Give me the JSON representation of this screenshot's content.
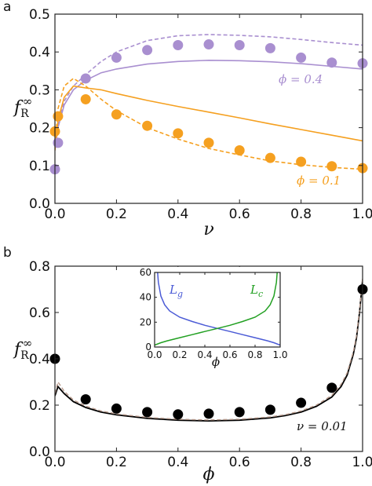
{
  "panel_labels": {
    "a": "a",
    "b": "b"
  },
  "chart_data": [
    {
      "type": "line",
      "panel": "a",
      "xlabel": "ν",
      "ylabel": "f",
      "ylabel_sub": "R",
      "ylabel_sup": "∞",
      "xlim": [
        0,
        1
      ],
      "ylim": [
        0,
        0.5
      ],
      "xticks": [
        "0.0",
        "0.2",
        "0.4",
        "0.6",
        "0.8",
        "1.0"
      ],
      "yticks": [
        "0.0",
        "0.1",
        "0.2",
        "0.3",
        "0.4",
        "0.5"
      ],
      "colors": {
        "purple": "#a98fd0",
        "orange": "#f5a020"
      },
      "annotations": [
        {
          "text": "ϕ = 0.4",
          "color": "#a98fd0"
        },
        {
          "text": "ϕ = 0.1",
          "color": "#f5a020"
        }
      ],
      "series": [
        {
          "color": "purple",
          "style": "solid",
          "x": [
            0.0,
            0.01,
            0.03,
            0.06,
            0.1,
            0.15,
            0.2,
            0.3,
            0.4,
            0.5,
            0.6,
            0.7,
            0.8,
            0.9,
            1.0
          ],
          "y": [
            0.14,
            0.2,
            0.26,
            0.3,
            0.325,
            0.345,
            0.355,
            0.368,
            0.375,
            0.378,
            0.377,
            0.374,
            0.369,
            0.362,
            0.355
          ]
        },
        {
          "color": "purple",
          "style": "dashed",
          "x": [
            0.0,
            0.01,
            0.03,
            0.06,
            0.1,
            0.15,
            0.2,
            0.3,
            0.4,
            0.5,
            0.6,
            0.7,
            0.8,
            0.9,
            1.0
          ],
          "y": [
            0.14,
            0.21,
            0.27,
            0.31,
            0.34,
            0.375,
            0.4,
            0.43,
            0.443,
            0.446,
            0.444,
            0.44,
            0.433,
            0.425,
            0.418
          ]
        },
        {
          "color": "orange",
          "style": "solid",
          "x": [
            0.0,
            0.01,
            0.03,
            0.06,
            0.1,
            0.15,
            0.2,
            0.3,
            0.4,
            0.5,
            0.6,
            0.7,
            0.8,
            0.9,
            1.0
          ],
          "y": [
            0.14,
            0.22,
            0.28,
            0.31,
            0.305,
            0.3,
            0.29,
            0.272,
            0.256,
            0.241,
            0.226,
            0.21,
            0.195,
            0.18,
            0.165
          ]
        },
        {
          "color": "orange",
          "style": "dashed",
          "x": [
            0.0,
            0.01,
            0.03,
            0.06,
            0.1,
            0.15,
            0.2,
            0.3,
            0.4,
            0.5,
            0.6,
            0.7,
            0.8,
            0.9,
            1.0
          ],
          "y": [
            0.15,
            0.25,
            0.31,
            0.33,
            0.31,
            0.275,
            0.245,
            0.2,
            0.17,
            0.145,
            0.128,
            0.112,
            0.102,
            0.095,
            0.09
          ]
        },
        {
          "color": "purple",
          "style": "points",
          "x": [
            0.0,
            0.01,
            0.1,
            0.2,
            0.3,
            0.4,
            0.5,
            0.6,
            0.7,
            0.8,
            0.9,
            1.0
          ],
          "y": [
            0.09,
            0.16,
            0.33,
            0.385,
            0.405,
            0.418,
            0.42,
            0.418,
            0.41,
            0.385,
            0.372,
            0.37
          ]
        },
        {
          "color": "orange",
          "style": "points",
          "x": [
            0.0,
            0.01,
            0.1,
            0.2,
            0.3,
            0.4,
            0.5,
            0.6,
            0.7,
            0.8,
            0.9,
            1.0
          ],
          "y": [
            0.19,
            0.23,
            0.275,
            0.235,
            0.205,
            0.185,
            0.16,
            0.14,
            0.12,
            0.11,
            0.098,
            0.093
          ]
        }
      ]
    },
    {
      "type": "line",
      "panel": "b",
      "xlabel": "ϕ",
      "ylabel": "f",
      "ylabel_sub": "R",
      "ylabel_sup": "∞",
      "xlim": [
        0,
        1
      ],
      "ylim": [
        0,
        0.8
      ],
      "xticks": [
        "0.0",
        "0.2",
        "0.4",
        "0.6",
        "0.8",
        "1.0"
      ],
      "yticks": [
        "0.0",
        "0.2",
        "0.4",
        "0.6",
        "0.8"
      ],
      "annotations": [
        {
          "text": "ν = 0.01",
          "color": "#111111"
        }
      ],
      "series": [
        {
          "color": "black",
          "style": "solid",
          "x": [
            0.0,
            0.01,
            0.03,
            0.06,
            0.1,
            0.15,
            0.2,
            0.3,
            0.4,
            0.5,
            0.6,
            0.7,
            0.75,
            0.8,
            0.85,
            0.9,
            0.93,
            0.95,
            0.97,
            0.98,
            0.99,
            1.0
          ],
          "y": [
            0.24,
            0.28,
            0.25,
            0.215,
            0.19,
            0.17,
            0.158,
            0.143,
            0.135,
            0.132,
            0.135,
            0.145,
            0.155,
            0.17,
            0.195,
            0.235,
            0.28,
            0.33,
            0.42,
            0.49,
            0.6,
            0.74
          ]
        },
        {
          "color": "dashed-gray",
          "style": "dashed",
          "x": [
            0.0,
            0.01,
            0.03,
            0.06,
            0.1,
            0.15,
            0.2,
            0.3,
            0.4,
            0.5,
            0.6,
            0.7,
            0.75,
            0.8,
            0.85,
            0.9,
            0.93,
            0.95,
            0.97,
            0.98,
            0.99,
            1.0
          ],
          "y": [
            0.25,
            0.3,
            0.26,
            0.222,
            0.196,
            0.175,
            0.162,
            0.147,
            0.139,
            0.136,
            0.139,
            0.149,
            0.159,
            0.175,
            0.2,
            0.242,
            0.29,
            0.34,
            0.43,
            0.5,
            0.61,
            0.75
          ]
        },
        {
          "color": "black",
          "style": "points",
          "x": [
            0.0,
            0.1,
            0.2,
            0.3,
            0.4,
            0.5,
            0.6,
            0.7,
            0.8,
            0.9,
            1.0
          ],
          "y": [
            0.4,
            0.225,
            0.185,
            0.17,
            0.16,
            0.163,
            0.17,
            0.18,
            0.21,
            0.275,
            0.7
          ]
        }
      ],
      "inset": {
        "xlabel": "ϕ",
        "xlim": [
          0,
          1
        ],
        "ylim": [
          0,
          60
        ],
        "xticks": [
          "0.0",
          "0.2",
          "0.4",
          "0.6",
          "0.8",
          "1.0"
        ],
        "yticks": [
          "0",
          "20",
          "40",
          "60"
        ],
        "series": [
          {
            "name": "L",
            "sub": "g",
            "color": "#4b5bd6",
            "x": [
              0.02,
              0.03,
              0.05,
              0.08,
              0.12,
              0.2,
              0.3,
              0.4,
              0.5,
              0.6,
              0.7,
              0.8,
              0.9,
              0.95,
              1.0
            ],
            "y": [
              65,
              52,
              41,
              34,
              29,
              24,
              20.5,
              17.5,
              15,
              12.5,
              10,
              7.5,
              5,
              3.5,
              1.5
            ]
          },
          {
            "name": "L",
            "sub": "c",
            "color": "#22a022",
            "x": [
              0.0,
              0.05,
              0.1,
              0.2,
              0.3,
              0.4,
              0.5,
              0.6,
              0.7,
              0.8,
              0.88,
              0.92,
              0.95,
              0.97,
              0.98
            ],
            "y": [
              1.5,
              3.5,
              5,
              7.5,
              10,
              12.5,
              15,
              17.5,
              20.5,
              24,
              29,
              34,
              41,
              52,
              65
            ]
          }
        ]
      }
    }
  ]
}
